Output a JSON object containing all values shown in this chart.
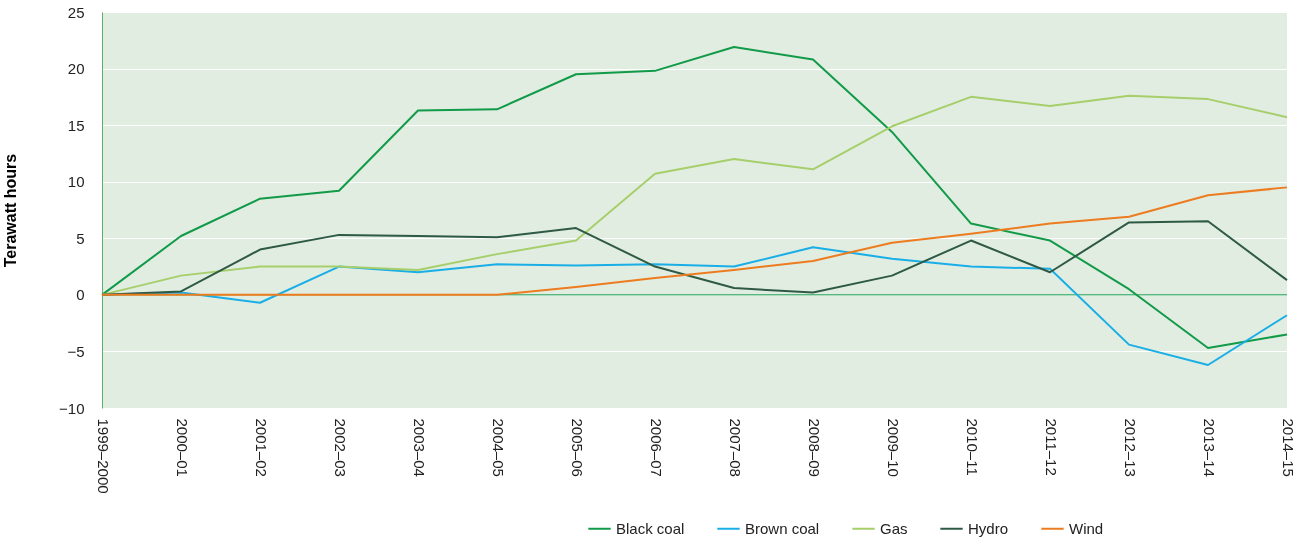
{
  "chart_data": {
    "type": "line",
    "ylabel": "Terawatt hours",
    "categories": [
      "1999–2000",
      "2000–01",
      "2001–02",
      "2002–03",
      "2003–04",
      "2004–05",
      "2005–06",
      "2006–07",
      "2007–08",
      "2008–09",
      "2009–10",
      "2010–11",
      "2011–12",
      "2012–13",
      "2013–14",
      "2014–15"
    ],
    "series": [
      {
        "name": "Black coal",
        "color": "#119a48",
        "values": [
          0,
          5.2,
          8.5,
          9.2,
          16.3,
          16.4,
          19.5,
          19.8,
          21.9,
          20.8,
          14.4,
          6.3,
          4.8,
          0.5,
          -4.7,
          -3.5
        ]
      },
      {
        "name": "Brown coal",
        "color": "#1aaee6",
        "values": [
          0,
          0.2,
          -0.7,
          2.5,
          2.0,
          2.7,
          2.6,
          2.7,
          2.5,
          4.2,
          3.2,
          2.5,
          2.3,
          -4.4,
          -6.2,
          -1.8
        ]
      },
      {
        "name": "Gas",
        "color": "#a6cf6b",
        "values": [
          0,
          1.7,
          2.5,
          2.5,
          2.2,
          3.6,
          4.8,
          10.7,
          12.0,
          11.1,
          14.9,
          17.5,
          16.7,
          17.6,
          17.3,
          15.7
        ]
      },
      {
        "name": "Hydro",
        "color": "#2e5a45",
        "values": [
          0,
          0.3,
          4.0,
          5.3,
          5.2,
          5.1,
          5.9,
          2.5,
          0.6,
          0.2,
          1.7,
          4.8,
          2.0,
          6.4,
          6.5,
          1.3
        ]
      },
      {
        "name": "Wind",
        "color": "#ec7c1f",
        "values": [
          0,
          0,
          0,
          0,
          0,
          0,
          0.7,
          1.5,
          2.2,
          3.0,
          4.6,
          5.4,
          6.3,
          6.9,
          8.8,
          9.5
        ]
      }
    ],
    "ylim": [
      -10,
      25
    ],
    "yticks": [
      -10,
      -5,
      0,
      5,
      10,
      15,
      20,
      25
    ],
    "grid": "y",
    "legend": "bottom right",
    "ref_lines": [
      {
        "axis": "y",
        "value": 0,
        "color": "#119a48"
      }
    ]
  }
}
